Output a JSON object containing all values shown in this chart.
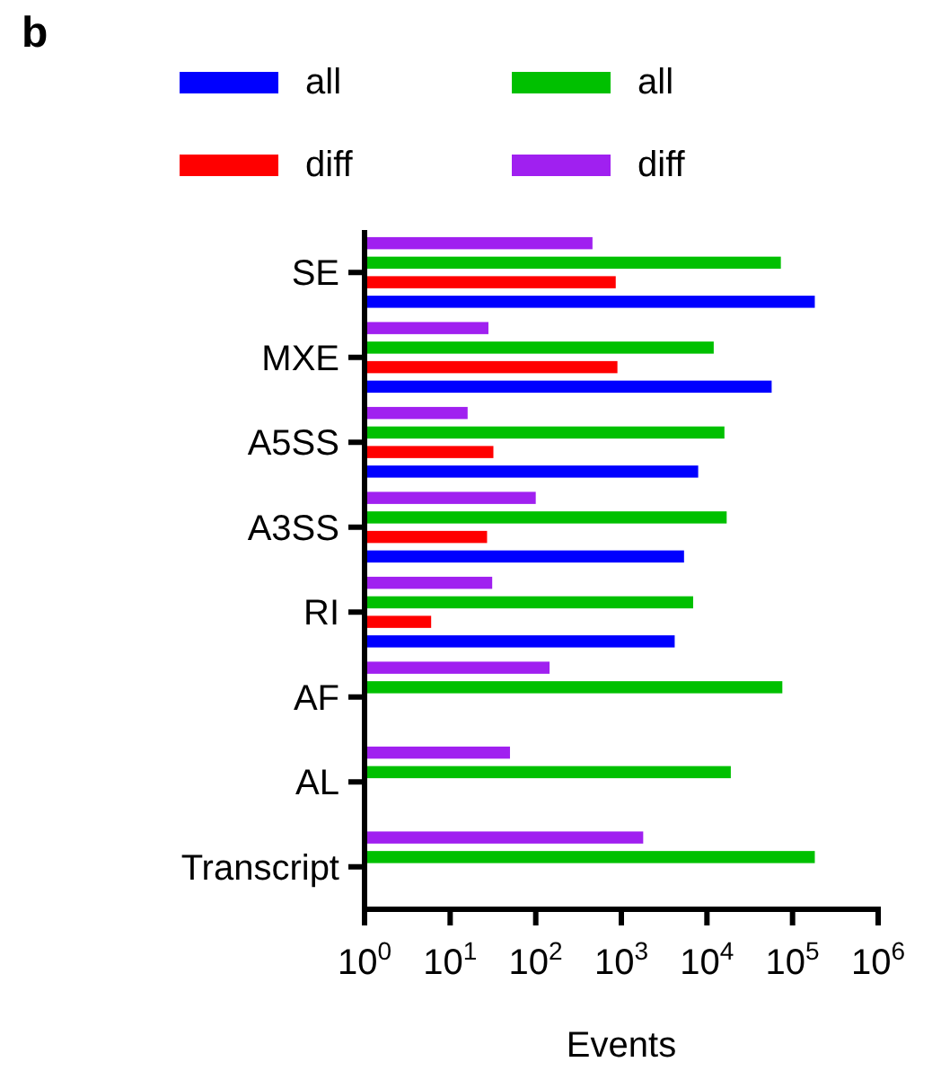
{
  "chart_data": {
    "type": "bar",
    "title": "b",
    "orientation": "horizontal",
    "log": "x",
    "xlabel": "Events",
    "categories": [
      "SE",
      "MXE",
      "A5SS",
      "A3SS",
      "RI",
      "AF",
      "AL",
      "Transcript"
    ],
    "series": [
      {
        "name": "all",
        "color": "#0000ff",
        "values": [
          182000,
          57000,
          7900,
          5400,
          4200,
          null,
          null,
          null
        ]
      },
      {
        "name": "diff",
        "color": "#ff0000",
        "values": [
          860,
          900,
          32,
          27,
          6,
          null,
          null,
          null
        ]
      },
      {
        "name": "all",
        "color": "#00c000",
        "values": [
          73000,
          12000,
          16000,
          17000,
          6900,
          76000,
          19000,
          182000
        ]
      },
      {
        "name": "diff",
        "color": "#a020f0",
        "values": [
          460,
          28,
          16,
          100,
          31,
          145,
          50,
          1800
        ]
      }
    ],
    "xlim": [
      1,
      1000000
    ],
    "xticks": [
      {
        "value": 1,
        "label": "10$^{0}$"
      },
      {
        "value": 10,
        "label": "10$^{1}$"
      },
      {
        "value": 100,
        "label": "10$^{2}$"
      },
      {
        "value": 1000,
        "label": "10$^{3}$"
      },
      {
        "value": 10000,
        "label": "10$^{4}$"
      },
      {
        "value": 100000,
        "label": "10$^{5}$"
      },
      {
        "value": 1000000,
        "label": "10$^{6}$"
      }
    ],
    "legend": "top",
    "grid": false
  }
}
